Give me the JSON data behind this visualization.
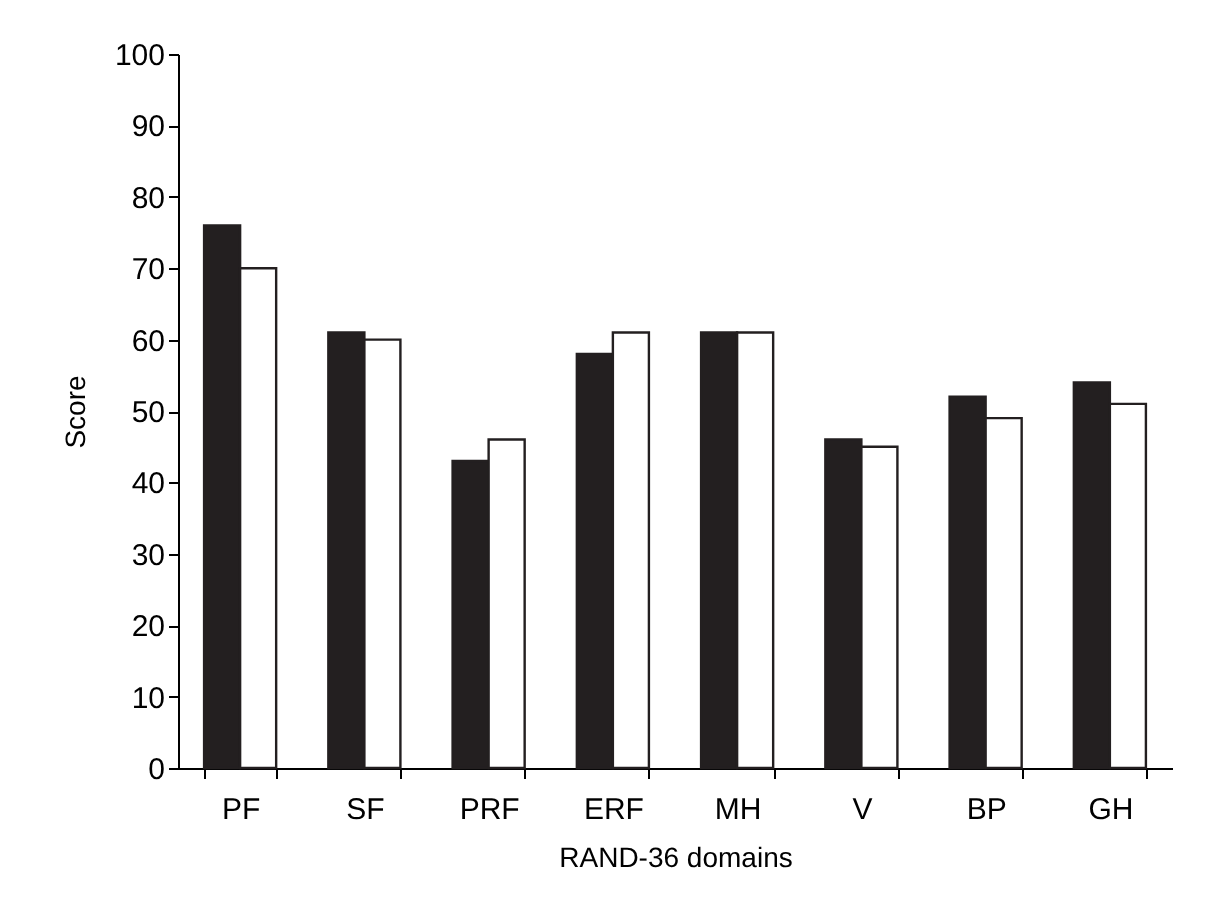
{
  "chart_data": {
    "type": "bar",
    "xlabel": "RAND-36 domains",
    "ylabel": "Score",
    "categories": [
      "PF",
      "SF",
      "PRF",
      "ERF",
      "MH",
      "V",
      "BP",
      "GH"
    ],
    "series": [
      {
        "color": "#231f20",
        "values": [
          76,
          61,
          43,
          58,
          61,
          46,
          52,
          54
        ]
      },
      {
        "color": "#ffffff",
        "values": [
          70,
          60,
          46,
          61,
          61,
          45,
          49,
          51
        ]
      }
    ],
    "ylim": [
      0,
      100
    ],
    "yticks": [
      0,
      10,
      20,
      30,
      40,
      50,
      60,
      70,
      80,
      90,
      100
    ],
    "grid": false,
    "legend": false
  }
}
